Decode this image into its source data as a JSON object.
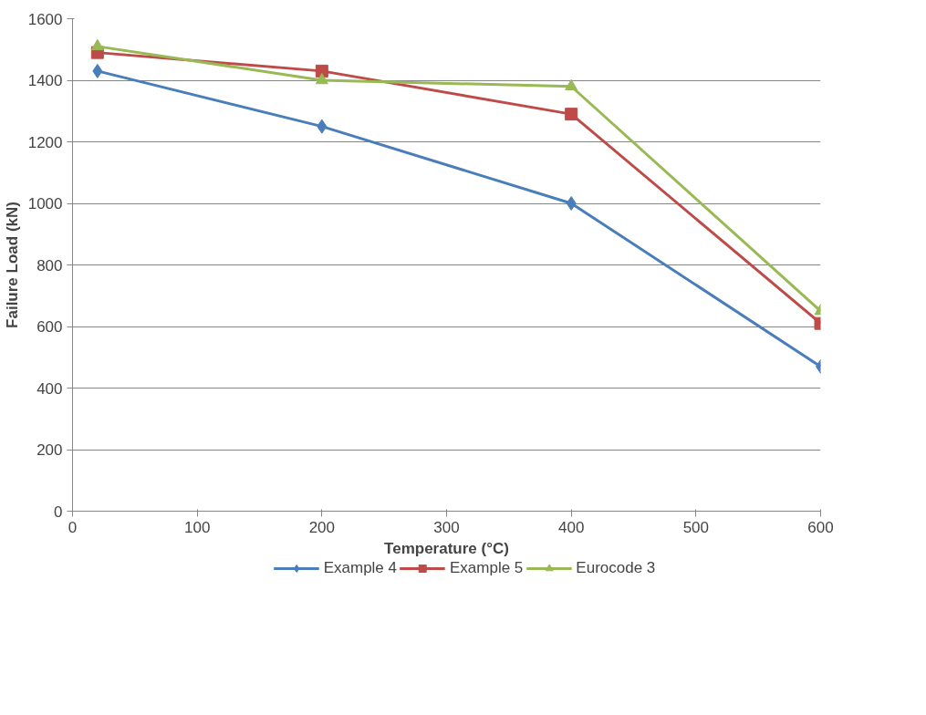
{
  "chart_data": {
    "type": "line",
    "xlabel": "Temperature (°C)",
    "ylabel": "Failure Load (kN)",
    "x": [
      20,
      200,
      400,
      600
    ],
    "series": [
      {
        "name": "Example 4",
        "color": "#4a7ebb",
        "marker": "diamond",
        "values": [
          1430,
          1250,
          1000,
          470
        ]
      },
      {
        "name": "Example 5",
        "color": "#be4b48",
        "marker": "square",
        "values": [
          1490,
          1430,
          1290,
          610
        ]
      },
      {
        "name": "Eurocode 3",
        "color": "#98b954",
        "marker": "triangle",
        "values": [
          1510,
          1400,
          1380,
          650
        ]
      }
    ],
    "xlim": [
      0,
      600
    ],
    "xticks": [
      0,
      100,
      200,
      300,
      400,
      500,
      600
    ],
    "ylim": [
      0,
      1600
    ],
    "yticks": [
      0,
      200,
      400,
      600,
      800,
      1000,
      1200,
      1400,
      1600
    ],
    "grid": "y",
    "legend": "bottom",
    "line_style": "solid"
  }
}
